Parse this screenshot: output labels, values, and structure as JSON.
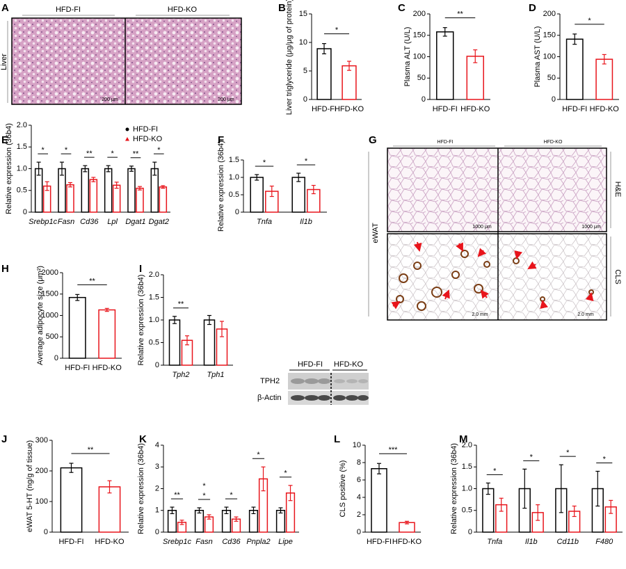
{
  "chart_data": [
    {
      "type": "bar",
      "label": "B",
      "ylabel": "Liver triglyceride (μg/μg of protein)",
      "categories": [
        "HFD-FI",
        "HFD-KO"
      ],
      "values": [
        8.9,
        5.9
      ],
      "errors": [
        0.9,
        0.8
      ],
      "colors": [
        "#000000",
        "#e8141b"
      ],
      "ylim": [
        0,
        15
      ],
      "yticks": [
        0,
        5,
        10,
        15
      ],
      "significance": "*"
    },
    {
      "type": "bar",
      "label": "C",
      "ylabel": "Plasma ALT (U/L)",
      "categories": [
        "HFD-FI",
        "HFD-KO"
      ],
      "values": [
        158,
        101
      ],
      "errors": [
        10,
        15
      ],
      "colors": [
        "#000000",
        "#e8141b"
      ],
      "ylim": [
        0,
        200
      ],
      "yticks": [
        0,
        50,
        100,
        150,
        200
      ],
      "significance": "**"
    },
    {
      "type": "bar",
      "label": "D",
      "ylabel": "Plasma AST (U/L)",
      "categories": [
        "HFD-FI",
        "HFD-KO"
      ],
      "values": [
        141,
        94
      ],
      "errors": [
        12,
        11
      ],
      "colors": [
        "#000000",
        "#e8141b"
      ],
      "ylim": [
        0,
        200
      ],
      "yticks": [
        0,
        50,
        100,
        150,
        200
      ],
      "significance": "*"
    },
    {
      "type": "bar",
      "label": "E",
      "ylabel": "Relative expression (36b4)",
      "categories": [
        "Srebp1c",
        "Fasn",
        "Cd36",
        "Lpl",
        "Dgat1",
        "Dgat2"
      ],
      "series": [
        {
          "name": "HFD-FI",
          "color": "#000000",
          "values": [
            1.0,
            1.0,
            1.0,
            1.0,
            1.0,
            1.0
          ],
          "errors": [
            0.15,
            0.15,
            0.07,
            0.07,
            0.06,
            0.15
          ]
        },
        {
          "name": "HFD-KO",
          "color": "#e8141b",
          "values": [
            0.6,
            0.63,
            0.75,
            0.62,
            0.55,
            0.58
          ],
          "errors": [
            0.1,
            0.05,
            0.05,
            0.07,
            0.04,
            0.03
          ]
        }
      ],
      "ylim": [
        0,
        2
      ],
      "yticks": [
        0,
        0.5,
        {
          "value": 1,
          "label": "1.0"
        },
        1.5,
        {
          "value": 2,
          "label": "2.0"
        }
      ],
      "significance": [
        "*",
        "*",
        "**",
        "*",
        "**",
        "*"
      ],
      "legend": true
    },
    {
      "type": "bar",
      "label": "F",
      "ylabel": "Relative expression (36b4)",
      "categories": [
        "Tnfa",
        "Il1b"
      ],
      "series": [
        {
          "name": "HFD-FI",
          "color": "#000000",
          "values": [
            1.0,
            1.0
          ],
          "errors": [
            0.08,
            0.12
          ]
        },
        {
          "name": "HFD-KO",
          "color": "#e8141b",
          "values": [
            0.6,
            0.65
          ],
          "errors": [
            0.15,
            0.12
          ]
        }
      ],
      "ylim": [
        0,
        1.5
      ],
      "yticks": [
        0,
        0.5,
        {
          "value": 1,
          "label": "1.0"
        },
        1.5
      ],
      "significance": [
        "*",
        "*"
      ]
    },
    {
      "type": "bar",
      "label": "H",
      "ylabel": "Average adipocyte size (μm²)",
      "categories": [
        "HFD-FI",
        "HFD-KO"
      ],
      "values": [
        1420,
        1130
      ],
      "errors": [
        70,
        35
      ],
      "colors": [
        "#000000",
        "#e8141b"
      ],
      "ylim": [
        0,
        2000
      ],
      "yticks": [
        0,
        500,
        1000,
        1500,
        2000
      ],
      "significance": "**"
    },
    {
      "type": "bar",
      "label": "I",
      "ylabel": "Relative expression (36b4)",
      "categories": [
        "Tph2",
        "Tph1"
      ],
      "series": [
        {
          "name": "HFD-FI",
          "color": "#000000",
          "values": [
            1.0,
            1.0
          ],
          "errors": [
            0.08,
            0.1
          ]
        },
        {
          "name": "HFD-KO",
          "color": "#e8141b",
          "values": [
            0.55,
            0.8
          ],
          "errors": [
            0.1,
            0.17
          ]
        }
      ],
      "ylim": [
        0,
        2
      ],
      "yticks": [
        0,
        0.5,
        {
          "value": 1,
          "label": "1.0"
        },
        1.5,
        {
          "value": 2,
          "label": "2.0"
        }
      ],
      "significance": [
        "**",
        null
      ]
    },
    {
      "type": "bar",
      "label": "J",
      "ylabel": "eWAT 5-HT (ng/g of tissue)",
      "categories": [
        "HFD-FI",
        "HFD-KO"
      ],
      "values": [
        210,
        148
      ],
      "errors": [
        15,
        20
      ],
      "colors": [
        "#000000",
        "#e8141b"
      ],
      "ylim": [
        0,
        300
      ],
      "yticks": [
        0,
        100,
        200,
        300
      ],
      "significance": "**"
    },
    {
      "type": "bar",
      "label": "K",
      "ylabel": "Relative expression (36b4)",
      "categories": [
        "Srebp1c",
        "Fasn",
        "Cd36",
        "Pnpla2",
        "Lipe"
      ],
      "series": [
        {
          "name": "HFD-FI",
          "color": "#000000",
          "values": [
            1,
            1,
            1,
            1,
            1
          ],
          "errors": [
            0.15,
            0.12,
            0.15,
            0.15,
            0.12
          ]
        },
        {
          "name": "HFD-KO",
          "color": "#e8141b",
          "values": [
            0.45,
            0.7,
            0.6,
            2.45,
            1.8
          ],
          "errors": [
            0.1,
            0.1,
            0.1,
            0.55,
            0.35
          ]
        }
      ],
      "ylim": [
        0,
        4
      ],
      "yticks": [
        0,
        1,
        2,
        3,
        4
      ],
      "significance": [
        [
          "**"
        ],
        [
          "*",
          "*"
        ],
        [
          "*"
        ],
        [
          "*"
        ],
        [
          "*"
        ]
      ]
    },
    {
      "type": "bar",
      "label": "L",
      "ylabel": "CLS positive (%)",
      "categories": [
        "HFD-FI",
        "HFD-KO"
      ],
      "values": [
        7.3,
        1.1
      ],
      "errors": [
        0.6,
        0.15
      ],
      "colors": [
        "#000000",
        "#e8141b"
      ],
      "ylim": [
        0,
        10
      ],
      "yticks": [
        0,
        2,
        4,
        6,
        8,
        10
      ],
      "significance": "***"
    },
    {
      "type": "bar",
      "label": "M",
      "ylabel": "Relative expression (36b4)",
      "categories": [
        "Tnfa",
        "Il1b",
        "Cd11b",
        "F480"
      ],
      "series": [
        {
          "name": "HFD-FI",
          "color": "#000000",
          "values": [
            1,
            1,
            1,
            1
          ],
          "errors": [
            0.13,
            0.45,
            0.55,
            0.4
          ]
        },
        {
          "name": "HFD-KO",
          "color": "#e8141b",
          "values": [
            0.63,
            0.45,
            0.48,
            0.58
          ],
          "errors": [
            0.15,
            0.18,
            0.12,
            0.15
          ]
        }
      ],
      "ylim": [
        0,
        2
      ],
      "yticks": [
        0,
        0.5,
        {
          "value": 1,
          "label": "1.0"
        },
        1.5,
        {
          "value": 2,
          "label": "2.0"
        }
      ],
      "significance": [
        "*",
        "*",
        "*",
        "*"
      ]
    }
  ],
  "images": {
    "liver": {
      "label": "A",
      "groups": [
        "HFD-FI",
        "HFD-KO"
      ],
      "tissue": "Liver",
      "scale_bars": [
        "200 μm",
        "200 μm"
      ]
    },
    "ewat": {
      "label": "G",
      "groups": [
        "HFD-FI",
        "HFD-KO"
      ],
      "tissue": "eWAT",
      "stains": [
        "H&E",
        "CLS"
      ],
      "scale_bars": [
        "1000 μm",
        "1000 μm",
        "2.0 mm",
        "2.0 mm"
      ]
    },
    "blot": {
      "groups": [
        "HFD-FI",
        "HFD-KO"
      ],
      "proteins": [
        "TPH2",
        "β-Actin"
      ]
    }
  }
}
